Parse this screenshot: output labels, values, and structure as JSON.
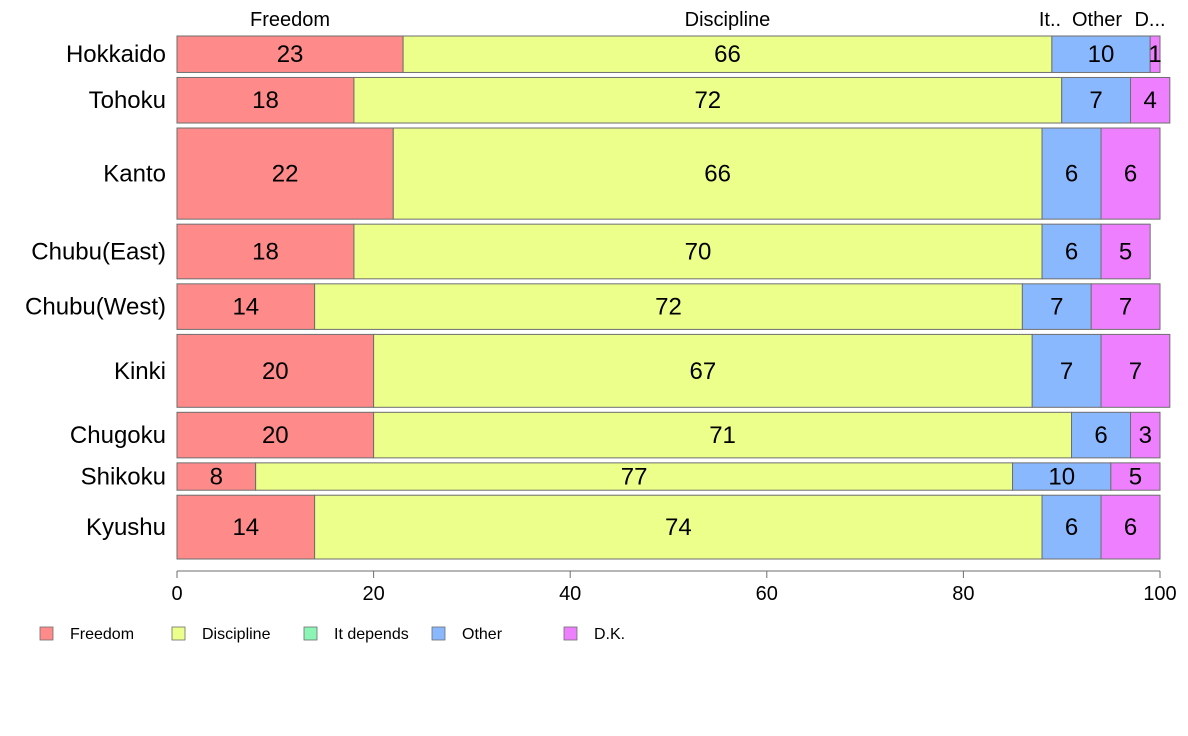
{
  "chart_data": {
    "type": "bar",
    "orientation": "horizontal",
    "stacked": "percent",
    "variable_width": true,
    "categories": [
      "Hokkaido",
      "Tohoku",
      "Kanto",
      "Chubu(East)",
      "Chubu(West)",
      "Kinki",
      "Chugoku",
      "Shikoku",
      "Kyushu"
    ],
    "relative_weight": [
      4,
      5,
      10,
      6,
      5,
      8,
      5,
      3,
      7
    ],
    "series": [
      {
        "name": "Freedom",
        "color": "#ff8a8a",
        "values": [
          23,
          18,
          22,
          18,
          14,
          20,
          20,
          8,
          14
        ],
        "labels": [
          "23",
          "18",
          "22",
          "18",
          "14",
          "20",
          "20",
          "8",
          "14"
        ]
      },
      {
        "name": "Discipline",
        "color": "#ecff8a",
        "values": [
          66,
          72,
          66,
          70,
          72,
          67,
          71,
          77,
          74
        ],
        "labels": [
          "66",
          "72",
          "66",
          "70",
          "72",
          "67",
          "71",
          "77",
          "74"
        ]
      },
      {
        "name": "It depends",
        "color": "#8af5b4",
        "values": [
          0,
          0,
          0,
          0,
          0,
          0,
          0,
          0,
          0
        ],
        "labels": [
          "",
          "",
          "",
          "",
          "",
          "",
          "",
          "",
          ""
        ]
      },
      {
        "name": "Other",
        "color": "#8ab8ff",
        "values": [
          10,
          7,
          6,
          6,
          7,
          7,
          6,
          10,
          6
        ],
        "labels": [
          "10",
          "7",
          "6",
          "6",
          "7",
          "7",
          "6",
          "10",
          "6"
        ]
      },
      {
        "name": "D.K.",
        "color": "#ee80ff",
        "values": [
          1,
          4,
          6,
          5,
          7,
          7,
          3,
          5,
          6
        ],
        "labels": [
          "1",
          "4",
          "6",
          "5",
          "7",
          "7",
          "3",
          "5",
          "6"
        ]
      }
    ],
    "top_labels": [
      "Freedom",
      "Discipline",
      "It..",
      "Other",
      "D..."
    ],
    "xlim": [
      0,
      100
    ],
    "xticks": [
      "0",
      "20",
      "40",
      "60",
      "80",
      "100"
    ],
    "grid": false,
    "legend_position": "bottom-left"
  }
}
